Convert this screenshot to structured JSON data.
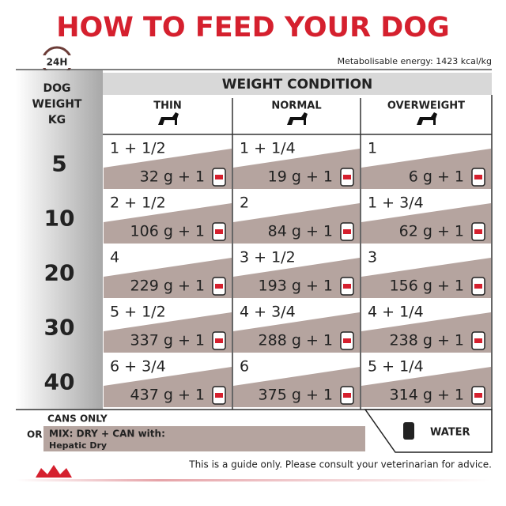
{
  "title": "HOW TO FEED YOUR DOG",
  "badge": "24H",
  "energy": "Metabolisable energy: 1423 kcal/kg",
  "table": {
    "weight_header": [
      "DOG",
      "WEIGHT",
      "KG"
    ],
    "group_header": "WEIGHT CONDITION",
    "columns": [
      "THIN",
      "NORMAL",
      "OVERWEIGHT"
    ],
    "rows": [
      {
        "weight": 5,
        "cells": [
          {
            "cans": "1 + 1/2",
            "mix": "32 g + 1"
          },
          {
            "cans": "1 + 1/4",
            "mix": "19 g + 1"
          },
          {
            "cans": "1",
            "mix": "6 g + 1"
          }
        ]
      },
      {
        "weight": 10,
        "cells": [
          {
            "cans": "2 + 1/2",
            "mix": "106 g + 1"
          },
          {
            "cans": "2",
            "mix": "84 g + 1"
          },
          {
            "cans": "1 + 3/4",
            "mix": "62 g + 1"
          }
        ]
      },
      {
        "weight": 20,
        "cells": [
          {
            "cans": "4",
            "mix": "229 g + 1"
          },
          {
            "cans": "3 + 1/2",
            "mix": "193 g + 1"
          },
          {
            "cans": "3",
            "mix": "156 g + 1"
          }
        ]
      },
      {
        "weight": 30,
        "cells": [
          {
            "cans": "5 + 1/2",
            "mix": "337 g + 1"
          },
          {
            "cans": "4 + 3/4",
            "mix": "288 g + 1"
          },
          {
            "cans": "4 + 1/4",
            "mix": "238 g + 1"
          }
        ]
      },
      {
        "weight": 40,
        "cells": [
          {
            "cans": "6 + 3/4",
            "mix": "437 g + 1"
          },
          {
            "cans": "6",
            "mix": "375 g + 1"
          },
          {
            "cans": "5 + 1/4",
            "mix": "314 g + 1"
          }
        ]
      }
    ]
  },
  "legend": {
    "cans_only": "CANS ONLY",
    "or": "OR",
    "mix": "MIX: DRY + CAN with:",
    "dry_product": "Hepatic Dry",
    "water": "WATER"
  },
  "footer": "This is a guide only. Please consult your veterinarian for advice."
}
